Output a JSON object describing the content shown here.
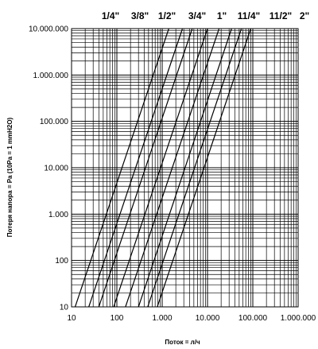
{
  "chart_data": {
    "type": "line",
    "title": "",
    "xlabel": "Поток = л/ч",
    "ylabel": "Потеря напора = Pa (10Pa = 1 mmH2O)",
    "x_scale": "log",
    "y_scale": "log",
    "xlim": [
      10,
      1000000
    ],
    "ylim": [
      10,
      10000000
    ],
    "x_ticks": [
      {
        "value": 10,
        "label": "10"
      },
      {
        "value": 100,
        "label": "100"
      },
      {
        "value": 1000,
        "label": "1.000"
      },
      {
        "value": 10000,
        "label": "10.000"
      },
      {
        "value": 100000,
        "label": "100.000"
      },
      {
        "value": 1000000,
        "label": "1.000.000"
      }
    ],
    "y_ticks": [
      {
        "value": 10,
        "label": "10"
      },
      {
        "value": 100,
        "label": "100"
      },
      {
        "value": 1000,
        "label": "1.000"
      },
      {
        "value": 10000,
        "label": "10.000"
      },
      {
        "value": 100000,
        "label": "100.000"
      },
      {
        "value": 1000000,
        "label": "1.000.000"
      },
      {
        "value": 10000000,
        "label": "10.000.000"
      }
    ],
    "grid": true,
    "legend_position": "top",
    "series": [
      {
        "name": "1/4\"",
        "x": [
          12,
          1400
        ],
        "y": [
          10,
          10000000
        ]
      },
      {
        "name": "3/8\"",
        "x": [
          24,
          2800
        ],
        "y": [
          10,
          10000000
        ]
      },
      {
        "name": "1/2\"",
        "x": [
          40,
          4600
        ],
        "y": [
          10,
          10000000
        ]
      },
      {
        "name": "3/4\"",
        "x": [
          85,
          10000
        ],
        "y": [
          10,
          10000000
        ]
      },
      {
        "name": "1\"",
        "x": [
          155,
          18000
        ],
        "y": [
          10,
          10000000
        ]
      },
      {
        "name": "11/4\"",
        "x": [
          300,
          34000
        ],
        "y": [
          10,
          10000000
        ]
      },
      {
        "name": "11/2\"",
        "x": [
          480,
          56000
        ],
        "y": [
          10,
          10000000
        ]
      },
      {
        "name": "2\"",
        "x": [
          780,
          90000
        ],
        "y": [
          10,
          10000000
        ]
      }
    ]
  }
}
